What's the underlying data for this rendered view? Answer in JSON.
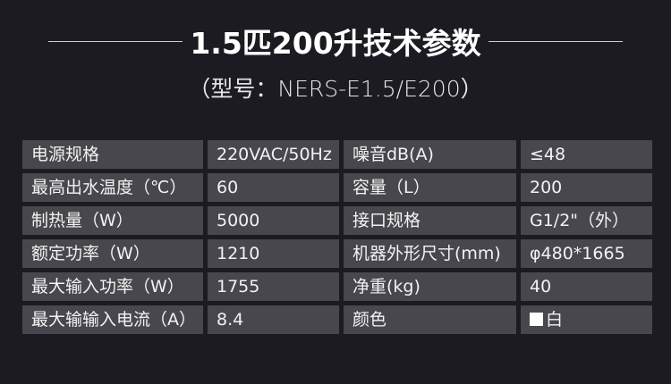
{
  "title": "1.5匹200升技术参数",
  "subtitle": "（型号：NERS-E1.5/E200）",
  "specs": [
    {
      "label1": "电源规格",
      "value1": "220VAC/50Hz",
      "label2": "噪音dB(A)",
      "value2": "≤48"
    },
    {
      "label1": "最高出水温度（℃）",
      "value1": "60",
      "label2": "容量（L）",
      "value2": "200"
    },
    {
      "label1": "制热量（W）",
      "value1": "5000",
      "label2": "接口规格",
      "value2": "G1/2\"（外）"
    },
    {
      "label1": "额定功率（W）",
      "value1": "1210",
      "label2": "机器外形尺寸(mm)",
      "value2": "φ480*1665"
    },
    {
      "label1": "最大输入功率（W）",
      "value1": "1755",
      "label2": "净重(kg)",
      "value2": "40"
    },
    {
      "label1": "最大输输入电流（A）",
      "value1": "8.4",
      "label2": "颜色",
      "value2": "白"
    }
  ],
  "colors": {
    "background": "#1c1b21",
    "cell": "#48474d",
    "swatch": "#ffffff"
  }
}
